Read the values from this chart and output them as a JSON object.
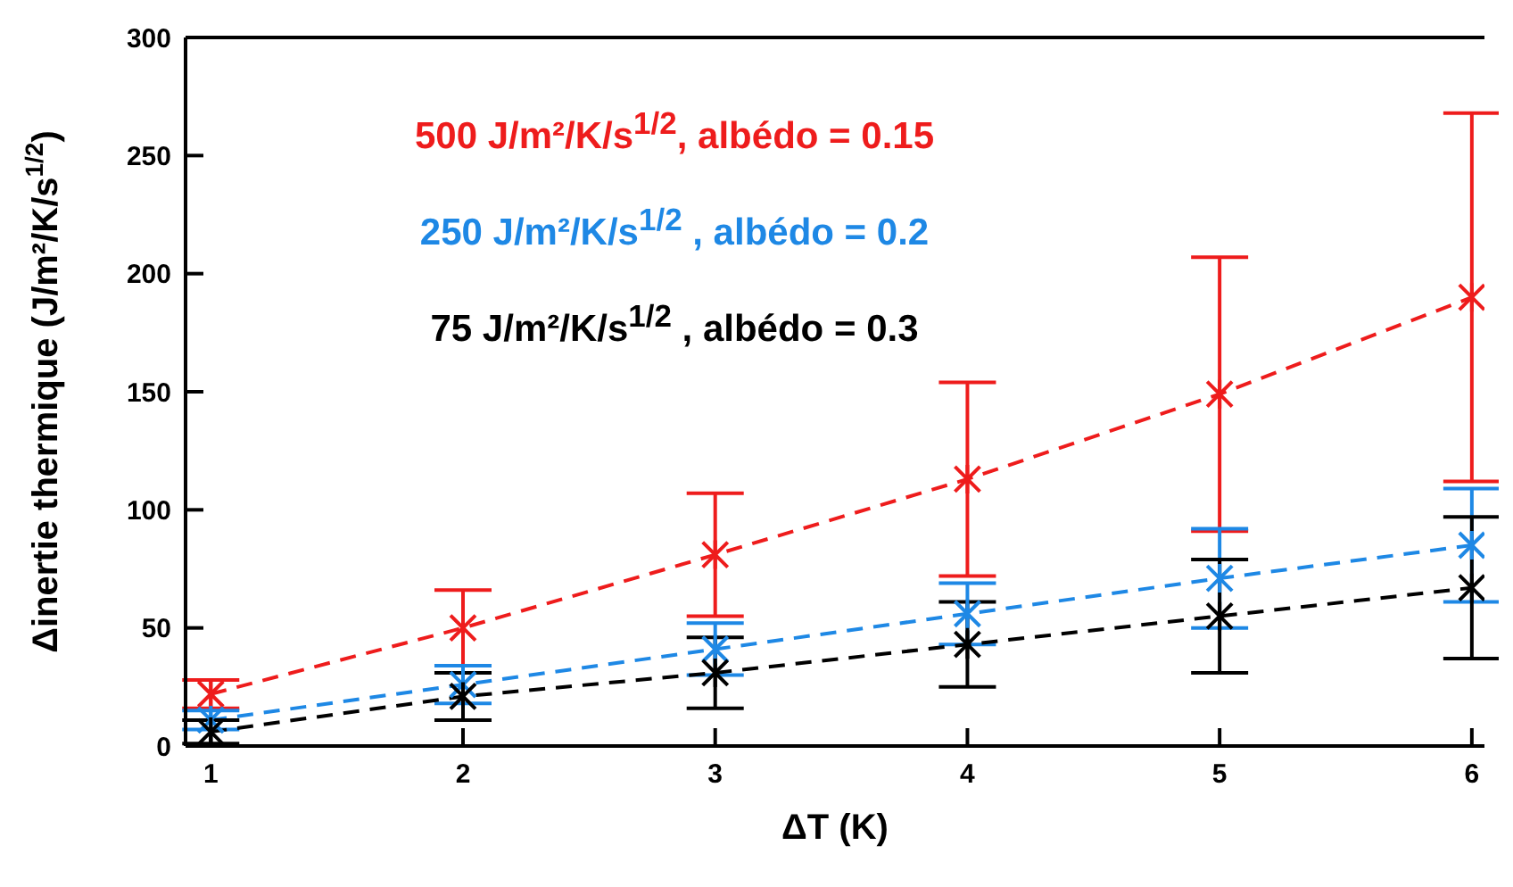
{
  "chart_data": {
    "type": "line",
    "xlabel": "ΔT (K)",
    "ylabel": "Δinertie thermique (J/m²/K/s$^{1/2}$)",
    "x": [
      1,
      2,
      3,
      4,
      5,
      6
    ],
    "series": [
      {
        "name": "500 J/m²/K/s$^{1/2}$, albédo = 0.15",
        "color": "#ee1c1c",
        "values": [
          22,
          50,
          81,
          113,
          149,
          190
        ],
        "errors": [
          6,
          16,
          26,
          41,
          58,
          78
        ]
      },
      {
        "name": "250 J/m²/K/s$^{1/2}$ , albédo = 0.2",
        "color": "#1e88e5",
        "values": [
          11,
          26,
          41,
          56,
          71,
          85
        ],
        "errors": [
          4,
          8,
          11,
          13,
          21,
          24
        ]
      },
      {
        "name": "75 J/m²/K/s$^{1/2}$ , albédo = 0.3",
        "color": "#000000",
        "values": [
          6,
          21,
          31,
          43,
          55,
          67
        ],
        "errors": [
          5,
          10,
          15,
          18,
          24,
          30
        ]
      }
    ],
    "xlim": [
      0.9,
      6.05
    ],
    "xticks": [
      1,
      2,
      3,
      4,
      5,
      6
    ],
    "ylim": [
      0,
      300
    ],
    "yticks": [
      0,
      50,
      100,
      150,
      200,
      250,
      300
    ],
    "legend": "top left",
    "marker": "cross",
    "line_style": "dashed"
  }
}
